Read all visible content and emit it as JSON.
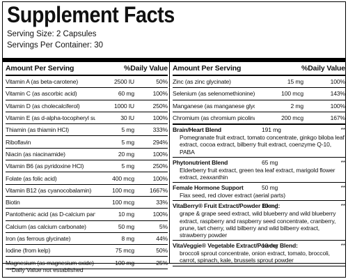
{
  "header": {
    "title": "Supplement Facts",
    "serving_size": "Serving Size: 2 Capsules",
    "servings_per_container": "Servings Per Container: 30"
  },
  "left_table": {
    "columns": [
      "Amount Per Serving",
      "%Daily Value"
    ],
    "rows": [
      [
        "Vitamin A (as beta-carotene)",
        "2500 IU",
        "50%"
      ],
      [
        "Vitamin C (as ascorbic acid)",
        "60 mg",
        "100%"
      ],
      [
        "Vitamin D (as cholecalciferol)",
        "1000 IU",
        "250%"
      ],
      [
        "Vitamin E (as d-alpha-tocopheryl succinate)",
        "30 IU",
        "100%"
      ],
      [
        "Thiamin (as thiamin HCl)",
        "5 mg",
        "333%"
      ],
      [
        "Riboflavin",
        "5 mg",
        "294%"
      ],
      [
        "Niacin (as niacinamide)",
        "20 mg",
        "100%"
      ],
      [
        "Vitamin B6 (as pyridoxine HCl)",
        "5 mg",
        "250%"
      ],
      [
        "Folate (as folic acid)",
        "400 mcg",
        "100%"
      ],
      [
        "Vitamin B12 (as cyanocobalamin)",
        "100 mcg",
        "1667%"
      ],
      [
        "Biotin",
        "100 mcg",
        "33%"
      ],
      [
        "Pantothenic acid (as D-calcium pantothenate)",
        "10 mg",
        "100%"
      ],
      [
        "Calcium (as calcium carbonate)",
        "50 mg",
        "5%"
      ],
      [
        "Iron (as ferrous glycinate)",
        "8 mg",
        "44%"
      ],
      [
        "Iodine (from kelp)",
        "75 mcg",
        "50%"
      ],
      [
        "Magnesium (as magnesium oxide)",
        "100 mg",
        "25%"
      ]
    ]
  },
  "right_table": {
    "columns": [
      "Amount Per Serving",
      "%Daily Value"
    ],
    "rows": [
      [
        "Zinc (as zinc glycinate)",
        "15 mg",
        "100%"
      ],
      [
        "Selenium (as selenomethionine)",
        "100 mcg",
        "143%"
      ],
      [
        "Manganese (as manganese glycinate)",
        "2 mg",
        "100%"
      ],
      [
        "Chromium (as chromium picolinate)",
        "200 mcg",
        "167%"
      ]
    ],
    "blends": [
      {
        "name": "Brain/Heart Blend",
        "amount": "191 mg",
        "daily_value": "**",
        "ingredients": "Pomegranate fruit extract, tomato concentrate, ginkgo biloba leaf extract, cocoa extract, bilberry fruit extract, coenzyme Q-10, PABA"
      },
      {
        "name": "Phytonutrient Blend",
        "amount": "65 mg",
        "daily_value": "**",
        "ingredients": "Elderberry fruit extract, green tea leaf extract, marigold flower extract, zeaxanthin"
      },
      {
        "name": "Female Hormone Support",
        "amount": "50 mg",
        "daily_value": "**",
        "ingredients": "Flax seed, red clover extract (aerial parts)"
      },
      {
        "name": "VitaBerry® Fruit Extract/Powder Blend:",
        "amount": "10 mg",
        "daily_value": "**",
        "ingredients": "grape & grape seed extract, wild blueberry and wild blueberry extract, raspberry and raspberry seed concentrate, cranberry, prune, tart cherry, wild bilberry and wild bilberry extract, strawberry powder"
      },
      {
        "name": "VitaVeggie® Vegetable Extract/Powder Blend:",
        "amount": "10 mg",
        "daily_value": "**",
        "ingredients": "broccoli sprout concentrate, onion extract, tomato, broccoli, carrot, spinach, kale, brussels sprout powder"
      }
    ]
  },
  "footnote": "**Daily Value not established"
}
